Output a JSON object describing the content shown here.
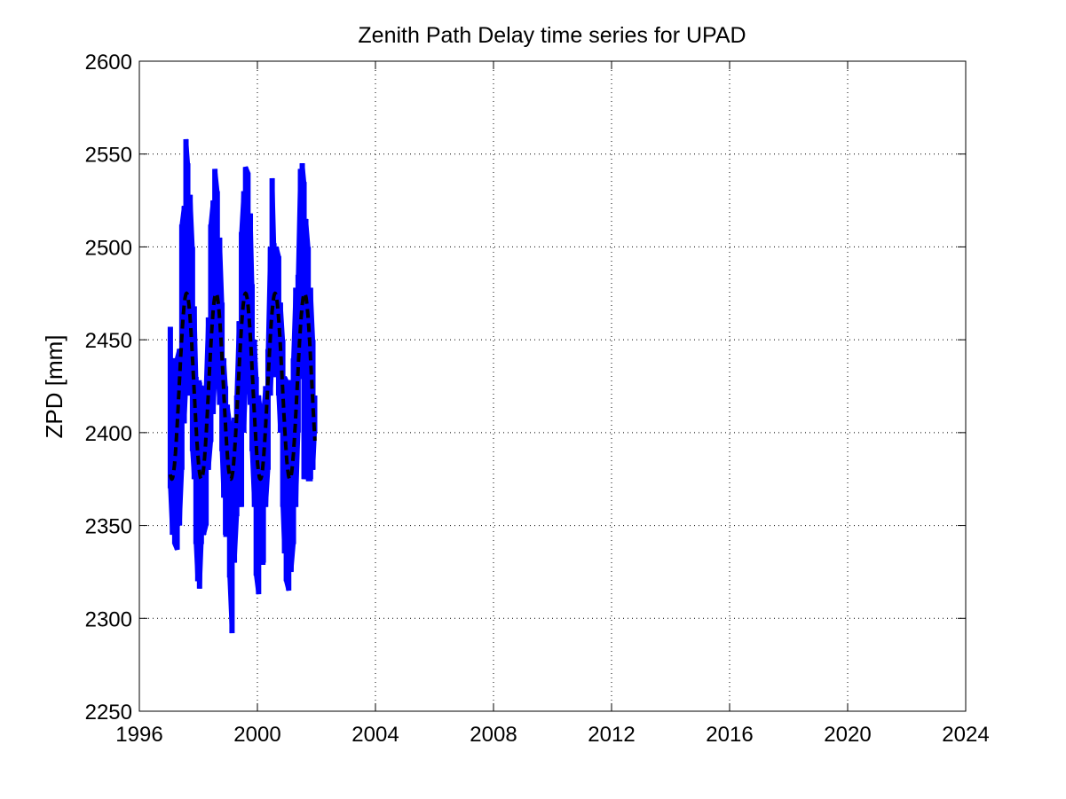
{
  "chart_data": {
    "type": "line",
    "title": "Zenith Path Delay time series for UPAD",
    "xlabel": "",
    "ylabel": "ZPD [mm]",
    "xlim": [
      1996,
      2024
    ],
    "ylim": [
      2250,
      2600
    ],
    "xticks": [
      "1996",
      "2000",
      "2004",
      "2008",
      "2012",
      "2016",
      "2020",
      "2024"
    ],
    "yticks": [
      "2250",
      "2300",
      "2350",
      "2400",
      "2450",
      "2500",
      "2550",
      "2600"
    ],
    "grid": true,
    "series": [
      {
        "color": "#0000ff",
        "style": "solid",
        "bands": [
          [
            1997.05,
            2370,
            2457
          ],
          [
            1997.12,
            2345,
            2440
          ],
          [
            1997.2,
            2340,
            2430
          ],
          [
            1997.28,
            2337,
            2440
          ],
          [
            1997.36,
            2350,
            2445
          ],
          [
            1997.44,
            2380,
            2512
          ],
          [
            1997.52,
            2405,
            2522
          ],
          [
            1997.58,
            2425,
            2558
          ],
          [
            1997.64,
            2440,
            2545
          ],
          [
            1997.72,
            2420,
            2528
          ],
          [
            1997.8,
            2390,
            2500
          ],
          [
            1997.86,
            2375,
            2468
          ],
          [
            1997.92,
            2340,
            2430
          ],
          [
            1997.98,
            2320,
            2427
          ],
          [
            1998.04,
            2316,
            2427
          ],
          [
            1998.1,
            2340,
            2425
          ],
          [
            1998.18,
            2345,
            2422
          ],
          [
            1998.26,
            2350,
            2425
          ],
          [
            1998.34,
            2380,
            2462
          ],
          [
            1998.42,
            2395,
            2512
          ],
          [
            1998.5,
            2410,
            2525
          ],
          [
            1998.56,
            2430,
            2542
          ],
          [
            1998.64,
            2440,
            2530
          ],
          [
            1998.72,
            2415,
            2505
          ],
          [
            1998.8,
            2390,
            2470
          ],
          [
            1998.86,
            2365,
            2440
          ],
          [
            1998.92,
            2345,
            2425
          ],
          [
            1998.98,
            2345,
            2415
          ],
          [
            1999.06,
            2322,
            2405
          ],
          [
            1999.14,
            2292,
            2398
          ],
          [
            1999.22,
            2330,
            2408
          ],
          [
            1999.3,
            2355,
            2420
          ],
          [
            1999.38,
            2375,
            2460
          ],
          [
            1999.46,
            2360,
            2508
          ],
          [
            1999.54,
            2400,
            2530
          ],
          [
            1999.6,
            2425,
            2543
          ],
          [
            1999.68,
            2440,
            2540
          ],
          [
            1999.76,
            2415,
            2518
          ],
          [
            1999.82,
            2390,
            2480
          ],
          [
            1999.9,
            2360,
            2450
          ],
          [
            1999.96,
            2323,
            2430
          ],
          [
            2000.04,
            2313,
            2420
          ],
          [
            2000.12,
            2330,
            2410
          ],
          [
            2000.2,
            2330,
            2410
          ],
          [
            2000.28,
            2360,
            2425
          ],
          [
            2000.36,
            2380,
            2445
          ],
          [
            2000.44,
            2420,
            2500
          ],
          [
            2000.5,
            2440,
            2537
          ],
          [
            2000.56,
            2430,
            2502
          ],
          [
            2000.64,
            2440,
            2500
          ],
          [
            2000.72,
            2420,
            2495
          ],
          [
            2000.78,
            2400,
            2470
          ],
          [
            2000.86,
            2360,
            2450
          ],
          [
            2000.92,
            2335,
            2430
          ],
          [
            2000.98,
            2320,
            2428
          ],
          [
            2001.06,
            2315,
            2425
          ],
          [
            2001.14,
            2325,
            2428
          ],
          [
            2001.22,
            2340,
            2440
          ],
          [
            2001.3,
            2360,
            2478
          ],
          [
            2001.38,
            2400,
            2485
          ],
          [
            2001.46,
            2430,
            2542
          ],
          [
            2001.52,
            2430,
            2545
          ],
          [
            2001.58,
            2375,
            2535
          ],
          [
            2001.64,
            2380,
            2515
          ],
          [
            2001.72,
            2375,
            2500
          ],
          [
            2001.8,
            2375,
            2478
          ],
          [
            2001.88,
            2380,
            2450
          ],
          [
            2001.94,
            2400,
            2420
          ]
        ]
      },
      {
        "color": "#000000",
        "style": "dashed",
        "model": {
          "mean": 2425,
          "amplitude": 50,
          "peak_year": 1997.6,
          "period": 1.0,
          "start": 1997.05,
          "end": 2001.95
        }
      }
    ]
  }
}
